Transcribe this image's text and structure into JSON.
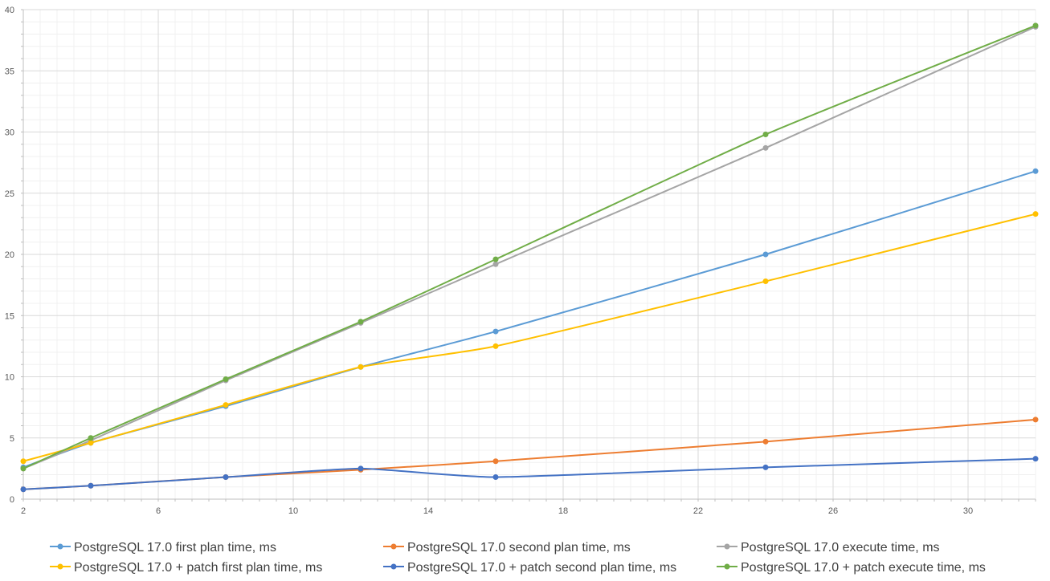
{
  "chart_data": {
    "type": "line",
    "title": "",
    "xlabel": "",
    "ylabel": "",
    "xlim": [
      2,
      32
    ],
    "ylim": [
      0,
      40
    ],
    "x_ticks": [
      2,
      6,
      10,
      14,
      18,
      22,
      26,
      30
    ],
    "y_ticks": [
      0,
      5,
      10,
      15,
      20,
      25,
      30,
      35,
      40
    ],
    "grid": true,
    "legend_position": "bottom",
    "x": [
      2,
      4,
      8,
      12,
      16,
      24,
      32
    ],
    "series": [
      {
        "name": "PostgreSQL 17.0 first plan time, ms",
        "color": "#5b9bd5",
        "values": [
          2.6,
          4.6,
          7.6,
          10.8,
          13.7,
          20.0,
          26.8
        ]
      },
      {
        "name": "PostgreSQL 17.0 second plan time, ms",
        "color": "#ed7d31",
        "values": [
          0.8,
          1.1,
          1.8,
          2.4,
          3.1,
          4.7,
          6.5
        ]
      },
      {
        "name": "PostgreSQL 17.0 execute time, ms",
        "color": "#a5a5a5",
        "values": [
          2.5,
          4.8,
          9.7,
          14.4,
          19.2,
          28.7,
          38.6
        ]
      },
      {
        "name": "PostgreSQL 17.0 + patch first plan time, ms",
        "color": "#ffc000",
        "values": [
          3.1,
          4.6,
          7.7,
          10.8,
          12.5,
          17.8,
          23.3
        ]
      },
      {
        "name": "PostgreSQL 17.0 + patch second plan time, ms",
        "color": "#4472c4",
        "values": [
          0.8,
          1.1,
          1.8,
          2.5,
          1.8,
          2.6,
          3.3
        ]
      },
      {
        "name": "PostgreSQL 17.0 + patch execute time, ms",
        "color": "#70ad47",
        "values": [
          2.5,
          5.0,
          9.8,
          14.5,
          19.6,
          29.8,
          38.7
        ]
      }
    ]
  }
}
